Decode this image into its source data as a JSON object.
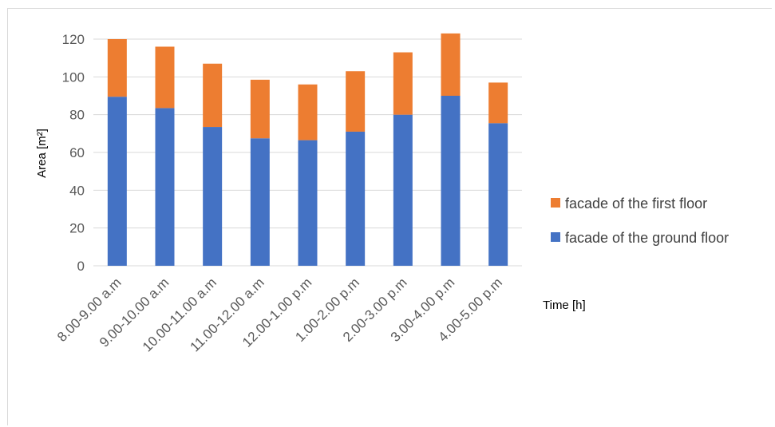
{
  "chart_data": {
    "type": "bar",
    "stacked": true,
    "categories": [
      "8.00-9.00 a.m",
      "9.00-10.00 a.m",
      "10.00-11.00 a.m",
      "11.00-12.00 a.m",
      "12.00-1.00 p.m",
      "1.00-2.00 p.m",
      "2.00-3.00 p.m",
      "3.00-4.00 p.m",
      "4.00-5.00 p.m"
    ],
    "series": [
      {
        "name": "facade of the ground floor",
        "color": "#4472c4",
        "values": [
          89.5,
          83.5,
          73.5,
          67.5,
          66.5,
          71,
          80,
          90,
          75.5
        ]
      },
      {
        "name": "facade of the first floor",
        "color": "#ed7d31",
        "values": [
          30.5,
          32.5,
          33.5,
          31,
          29.5,
          32,
          33,
          33,
          21.5
        ]
      }
    ],
    "title": "",
    "xlabel": "Time [h]",
    "ylabel": "Area [m²]",
    "ylim": [
      0,
      120
    ],
    "yticks": [
      "0",
      "20",
      "40",
      "60",
      "80",
      "100",
      "120"
    ],
    "grid": true,
    "legend_position": "right"
  }
}
